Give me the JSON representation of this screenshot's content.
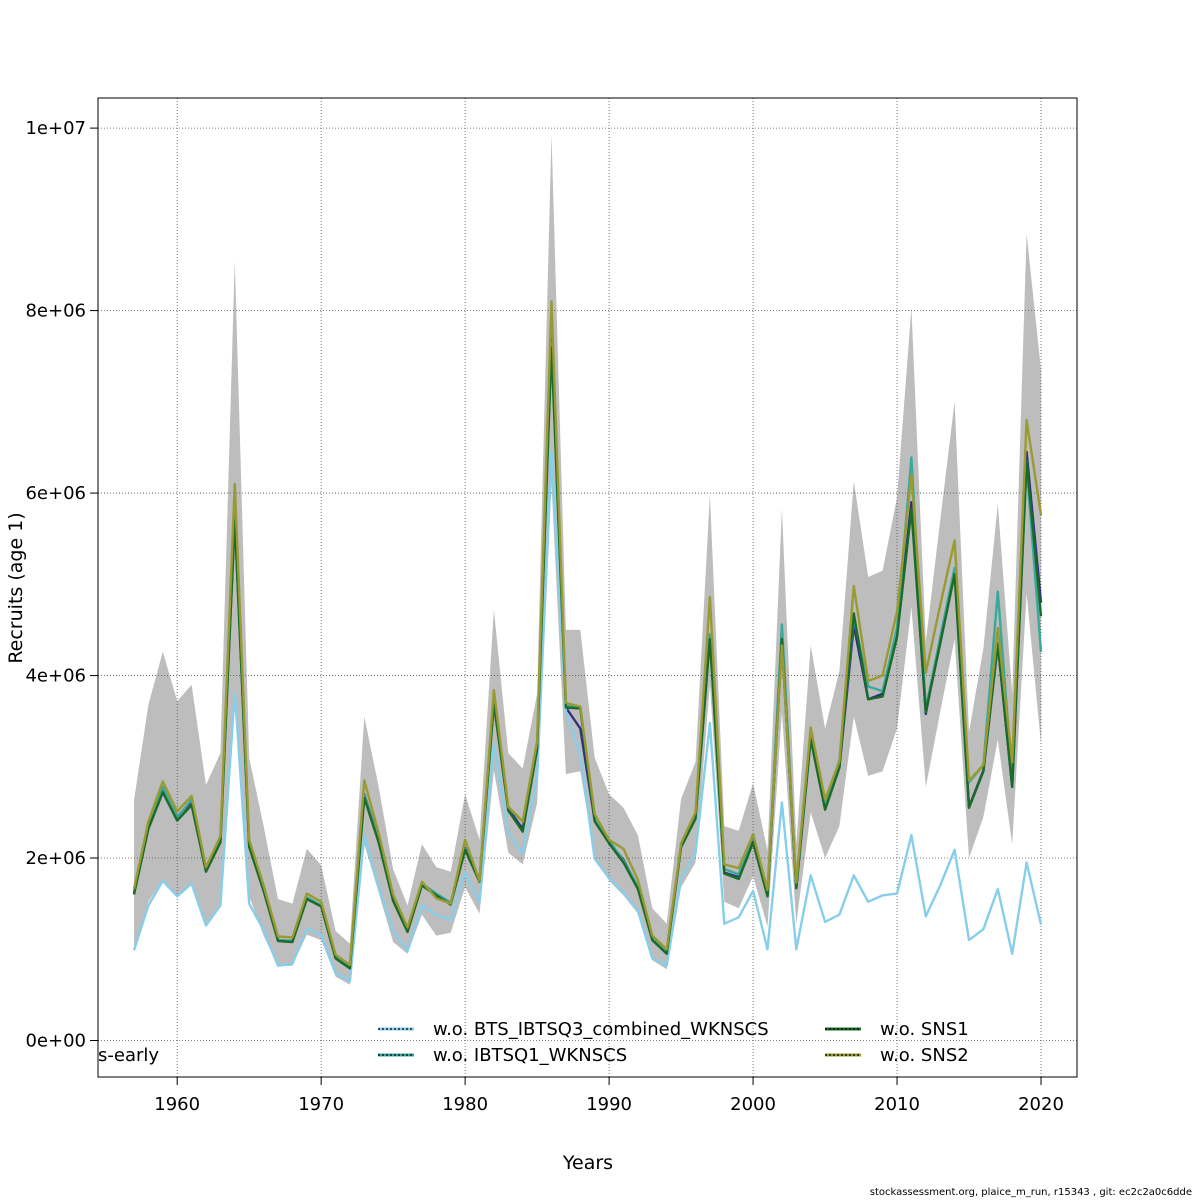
{
  "footer": "stockassessment.org, plaice_m_run, r15343 , git: ec2c2a0c6dde",
  "chart_data": {
    "type": "line",
    "xlabel": "Years",
    "ylabel": "Recruits (age 1)",
    "corner_label": "s-early",
    "xlim": [
      1954.5,
      2022.5
    ],
    "ylim": [
      -400000,
      10330000
    ],
    "xticks": [
      1960,
      1970,
      1980,
      1990,
      2000,
      2010,
      2020
    ],
    "yticks": [
      0,
      2000000,
      4000000,
      6000000,
      8000000,
      10000000
    ],
    "ytick_labels": [
      "0e+00",
      "2e+06",
      "4e+06",
      "6e+06",
      "8e+06",
      "1e+07"
    ],
    "grid": true,
    "legend_position": "bottom-center",
    "x": [
      1957,
      1958,
      1959,
      1960,
      1961,
      1962,
      1963,
      1964,
      1965,
      1966,
      1967,
      1968,
      1969,
      1970,
      1971,
      1972,
      1973,
      1974,
      1975,
      1976,
      1977,
      1978,
      1979,
      1980,
      1981,
      1982,
      1983,
      1984,
      1985,
      1986,
      1987,
      1988,
      1989,
      1990,
      1991,
      1992,
      1993,
      1994,
      1995,
      1996,
      1997,
      1998,
      1999,
      2000,
      2001,
      2002,
      2003,
      2004,
      2005,
      2006,
      2007,
      2008,
      2009,
      2010,
      2011,
      2012,
      2013,
      2014,
      2015,
      2016,
      2017,
      2018,
      2019,
      2020
    ],
    "band": {
      "upper": [
        2630000,
        3680000,
        4260000,
        3720000,
        3900000,
        2800000,
        3150000,
        8550000,
        3100000,
        2350000,
        1550000,
        1500000,
        2100000,
        1920000,
        1200000,
        1060000,
        3550000,
        2780000,
        1880000,
        1480000,
        2150000,
        1900000,
        1850000,
        2700000,
        2200000,
        4720000,
        3150000,
        2980000,
        3800000,
        9930000,
        4500000,
        4500000,
        3100000,
        2700000,
        2550000,
        2250000,
        1450000,
        1280000,
        2650000,
        3050000,
        5980000,
        2350000,
        2300000,
        2820000,
        2080000,
        5830000,
        2160000,
        4330000,
        3420000,
        4050000,
        6130000,
        5080000,
        5150000,
        5950000,
        8030000,
        4370000,
        5700000,
        7000000,
        3380000,
        4300000,
        5880000,
        3800000,
        8840000,
        7350000
      ],
      "lower": [
        980000,
        1520000,
        1760000,
        1600000,
        1720000,
        1280000,
        1500000,
        3850000,
        1580000,
        1150000,
        810000,
        820000,
        1160000,
        1100000,
        700000,
        610000,
        2150000,
        1620000,
        1080000,
        950000,
        1380000,
        1150000,
        1180000,
        1680000,
        1390000,
        2960000,
        2060000,
        1930000,
        2600000,
        6100000,
        2920000,
        2950000,
        2000000,
        1750000,
        1590000,
        1390000,
        880000,
        780000,
        1680000,
        1950000,
        3900000,
        1520000,
        1450000,
        1800000,
        1250000,
        3600000,
        1280000,
        2500000,
        2000000,
        2350000,
        3550000,
        2900000,
        2950000,
        3420000,
        4750000,
        2780000,
        3600000,
        4400000,
        2000000,
        2450000,
        3300000,
        2150000,
        4900000,
        3250000
      ]
    },
    "series": [
      {
        "name": "",
        "color": "#303080",
        "dash": "none",
        "values": [
          1620000,
          2340000,
          2760000,
          2450000,
          2620000,
          1860000,
          2200000,
          5750000,
          2150000,
          1650000,
          1100000,
          1090000,
          1560000,
          1480000,
          910000,
          800000,
          2700000,
          2200000,
          1550000,
          1200000,
          1710000,
          1600000,
          1500000,
          2110000,
          1750000,
          3720000,
          2540000,
          2320000,
          3200000,
          7850000,
          3650000,
          3420000,
          2410000,
          2170000,
          1980000,
          1680000,
          1110000,
          960000,
          2140000,
          2450000,
          4450000,
          1840000,
          1790000,
          2180000,
          1590000,
          4360000,
          1670000,
          3350000,
          2560000,
          3000000,
          4550000,
          3740000,
          3800000,
          4460000,
          5900000,
          3580000,
          4410000,
          5170000,
          2560000,
          2960000,
          4340000,
          2780000,
          6450000,
          4800000
        ]
      },
      {
        "name": "w.o. BTS_IBTSQ3_combined_WKNSCS",
        "color": "#87ceeb",
        "dash": "none",
        "values": [
          990000,
          1480000,
          1750000,
          1580000,
          1720000,
          1260000,
          1480000,
          3820000,
          1500000,
          1210000,
          820000,
          840000,
          1230000,
          1150000,
          740000,
          650000,
          2250000,
          1680000,
          1200000,
          980000,
          1480000,
          1380000,
          1320000,
          1840000,
          1510000,
          3250000,
          2270000,
          2050000,
          2900000,
          6450000,
          3600000,
          3130000,
          1990000,
          1780000,
          1620000,
          1420000,
          900000,
          820000,
          1780000,
          2050000,
          3480000,
          1280000,
          1350000,
          1640000,
          1000000,
          2610000,
          1000000,
          1810000,
          1300000,
          1380000,
          1810000,
          1520000,
          1590000,
          1610000,
          2250000,
          1360000,
          1700000,
          2090000,
          1100000,
          1220000,
          1660000,
          950000,
          1950000,
          1270000
        ]
      },
      {
        "name": "w.o. IBTSQ1_WKNSCS",
        "color": "#3aa89a",
        "dash": "none",
        "values": [
          1610000,
          2350000,
          2780000,
          2440000,
          2640000,
          1860000,
          2190000,
          5720000,
          2140000,
          1660000,
          1100000,
          1090000,
          1570000,
          1480000,
          910000,
          800000,
          2690000,
          2200000,
          1560000,
          1210000,
          1720000,
          1610000,
          1510000,
          2100000,
          1760000,
          3700000,
          2550000,
          2400000,
          3210000,
          7650000,
          3670000,
          3650000,
          2420000,
          2190000,
          1970000,
          1690000,
          1110000,
          970000,
          2130000,
          2450000,
          4450000,
          1880000,
          1820000,
          2260000,
          1580000,
          4560000,
          1680000,
          3330000,
          2600000,
          3070000,
          4630000,
          3880000,
          3830000,
          4520000,
          6390000,
          3640000,
          4410000,
          5180000,
          2830000,
          3020000,
          4920000,
          2880000,
          6300000,
          4260000
        ]
      },
      {
        "name": "w.o. SNS1",
        "color": "#1a6b2a",
        "dash": "none",
        "values": [
          1600000,
          2320000,
          2720000,
          2410000,
          2580000,
          1850000,
          2170000,
          5700000,
          2120000,
          1640000,
          1090000,
          1080000,
          1550000,
          1470000,
          900000,
          790000,
          2660000,
          2170000,
          1530000,
          1190000,
          1700000,
          1590000,
          1490000,
          2090000,
          1740000,
          3690000,
          2520000,
          2290000,
          3190000,
          7600000,
          3650000,
          3640000,
          2400000,
          2160000,
          1950000,
          1660000,
          1100000,
          950000,
          2120000,
          2430000,
          4400000,
          1830000,
          1770000,
          2170000,
          1580000,
          4400000,
          1670000,
          3300000,
          2530000,
          2990000,
          4680000,
          3740000,
          3770000,
          4420000,
          5820000,
          3600000,
          4350000,
          5110000,
          2550000,
          2950000,
          4350000,
          2780000,
          6350000,
          4650000
        ]
      },
      {
        "name": "w.o. SNS2",
        "color": "#9a9a32",
        "dash": "none",
        "values": [
          1660000,
          2400000,
          2840000,
          2510000,
          2680000,
          1900000,
          2240000,
          6100000,
          2200000,
          1700000,
          1140000,
          1130000,
          1610000,
          1520000,
          940000,
          830000,
          2850000,
          2270000,
          1600000,
          1240000,
          1740000,
          1560000,
          1500000,
          2200000,
          1750000,
          3840000,
          2560000,
          2400000,
          3280000,
          8100000,
          3700000,
          3660000,
          2480000,
          2200000,
          2100000,
          1760000,
          1150000,
          1000000,
          2160000,
          2500000,
          4860000,
          1930000,
          1890000,
          2260000,
          1650000,
          4330000,
          1730000,
          3430000,
          2640000,
          3060000,
          4980000,
          3940000,
          4000000,
          4700000,
          6200000,
          4030000,
          4770000,
          5480000,
          2850000,
          3020000,
          4520000,
          3050000,
          6800000,
          5760000
        ]
      }
    ]
  }
}
